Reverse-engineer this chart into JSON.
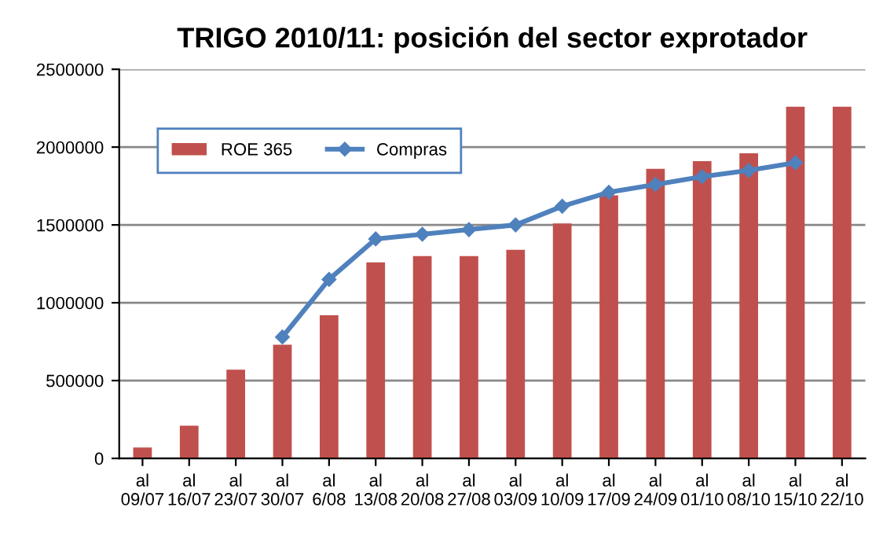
{
  "chart_data": {
    "type": "bar",
    "title": "TRIGO 2010/11: posición del sector exprotador",
    "categories": [
      "al\n09/07",
      "al\n16/07",
      "al\n23/07",
      "al\n30/07",
      "al\n6/08",
      "al\n13/08",
      "al\n20/08",
      "al\n27/08",
      "al\n03/09",
      "al\n10/09",
      "al\n17/09",
      "al\n24/09",
      "al\n01/10",
      "al\n08/10",
      "al\n15/10",
      "al\n22/10"
    ],
    "series": [
      {
        "name": "ROE 365",
        "color": "#c0504d",
        "values": [
          70000,
          210000,
          570000,
          730000,
          920000,
          1260000,
          1300000,
          1300000,
          1340000,
          1510000,
          1690000,
          1860000,
          1910000,
          1960000,
          2260000,
          2260000
        ]
      },
      {
        "name": "Compras",
        "type": "line",
        "color": "#4f81bd",
        "marker": "diamond",
        "values": [
          null,
          null,
          null,
          780000,
          1150000,
          1410000,
          1440000,
          1470000,
          1500000,
          1620000,
          1710000,
          1760000,
          1810000,
          1850000,
          1900000,
          null
        ]
      }
    ],
    "ylim": [
      0,
      2500000
    ],
    "yticks": [
      0,
      500000,
      1000000,
      1500000,
      2000000,
      2500000
    ],
    "grid": "y",
    "legend": "top left"
  }
}
